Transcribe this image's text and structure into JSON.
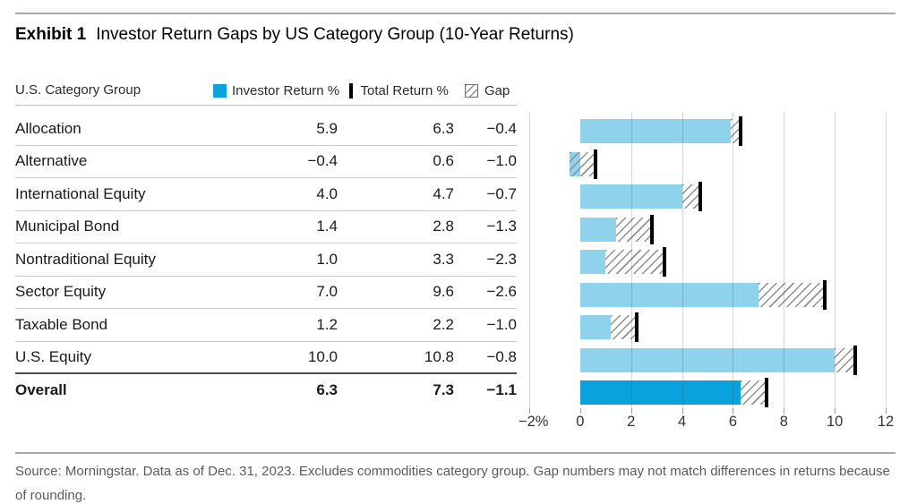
{
  "exhibit": {
    "label": "Exhibit 1",
    "title": "Investor Return Gaps by US Category Group (10-Year Returns)"
  },
  "table": {
    "header": "U.S. Category Group",
    "legend": {
      "investor": "Investor Return %",
      "total": "Total Return %",
      "gap": "Gap"
    },
    "columns": [
      "U.S. Category Group",
      "Investor Return %",
      "Total Return %",
      "Gap"
    ],
    "rows": [
      {
        "label": "Allocation",
        "investor": "5.9",
        "total": "6.3",
        "gap": "−0.4",
        "bold": false
      },
      {
        "label": "Alternative",
        "investor": "−0.4",
        "total": "0.6",
        "gap": "−1.0",
        "bold": false
      },
      {
        "label": "International Equity",
        "investor": "4.0",
        "total": "4.7",
        "gap": "−0.7",
        "bold": false
      },
      {
        "label": "Municipal Bond",
        "investor": "1.4",
        "total": "2.8",
        "gap": "−1.3",
        "bold": false
      },
      {
        "label": "Nontraditional Equity",
        "investor": "1.0",
        "total": "3.3",
        "gap": "−2.3",
        "bold": false
      },
      {
        "label": "Sector Equity",
        "investor": "7.0",
        "total": "9.6",
        "gap": "−2.6",
        "bold": false
      },
      {
        "label": "Taxable Bond",
        "investor": "1.2",
        "total": "2.2",
        "gap": "−1.0",
        "bold": false
      },
      {
        "label": "U.S. Equity",
        "investor": "10.0",
        "total": "10.8",
        "gap": "−0.8",
        "bold": false
      },
      {
        "label": "Overall",
        "investor": "6.3",
        "total": "7.3",
        "gap": "−1.1",
        "bold": true
      }
    ]
  },
  "chart_data": {
    "type": "bar",
    "orientation": "horizontal",
    "title": "Investor Return Gaps by US Category Group (10-Year Returns)",
    "categories": [
      "Allocation",
      "Alternative",
      "International Equity",
      "Municipal Bond",
      "Nontraditional Equity",
      "Sector Equity",
      "Taxable Bond",
      "U.S. Equity",
      "Overall"
    ],
    "series": [
      {
        "name": "Investor Return %",
        "values": [
          5.9,
          -0.4,
          4.0,
          1.4,
          1.0,
          7.0,
          1.2,
          10.0,
          6.3
        ]
      },
      {
        "name": "Total Return %",
        "values": [
          6.3,
          0.6,
          4.7,
          2.8,
          3.3,
          9.6,
          2.2,
          10.8,
          7.3
        ]
      }
    ],
    "gap_series": {
      "name": "Gap",
      "values": [
        -0.4,
        -1.0,
        -0.7,
        -1.3,
        -2.3,
        -2.6,
        -1.0,
        -0.8,
        -1.1
      ]
    },
    "xlim": [
      -2,
      12
    ],
    "xticks": [
      {
        "value": -2,
        "label": "−2%"
      },
      {
        "value": 0,
        "label": "0"
      },
      {
        "value": 2,
        "label": "2"
      },
      {
        "value": 4,
        "label": "4"
      },
      {
        "value": 6,
        "label": "6"
      },
      {
        "value": 8,
        "label": "8"
      },
      {
        "value": 10,
        "label": "10"
      },
      {
        "value": 12,
        "label": "12"
      }
    ],
    "grid": "vertical",
    "legend_position": "top",
    "colors": {
      "investor_bar": "#8FD2EB",
      "overall_bar": "#09A2DC",
      "total_marker": "#000000",
      "hatch_line": "#8F8F8F"
    }
  },
  "source": {
    "line1": "Source: Morningstar. Data as of Dec. 31, 2023. Excludes commodities category group. Gap numbers may not match differences in returns because",
    "line2": "of rounding."
  }
}
